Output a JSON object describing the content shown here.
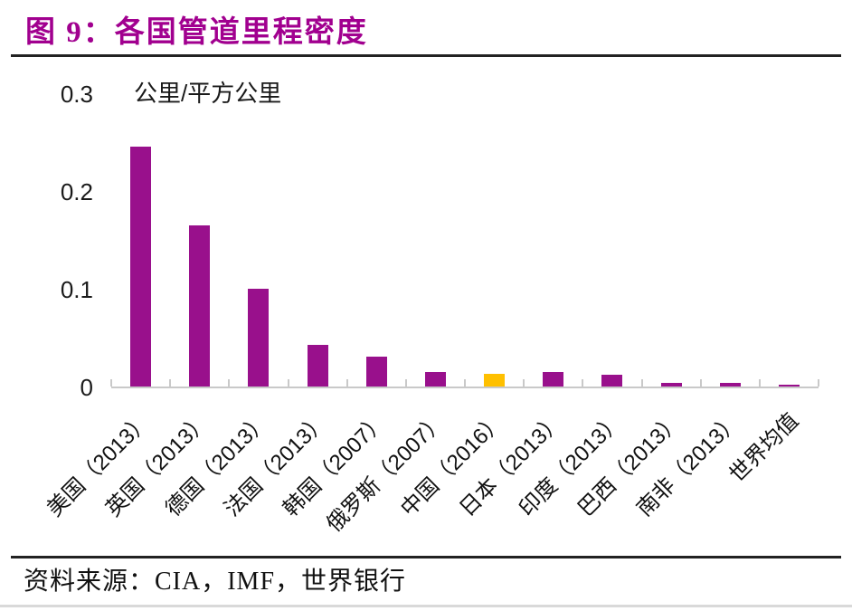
{
  "title": "图 9：各国管道里程密度",
  "unit_label": "公里/平方公里",
  "source_label": "资料来源：CIA，IMF，世界银行",
  "colors": {
    "title": "#a1008f",
    "bar": "#99108c",
    "highlight_bar": "#ffc000",
    "axis": "#c9c9c9",
    "rule": "#222222",
    "page_bottom_border": "#d9d9d9"
  },
  "chart_data": {
    "type": "bar",
    "title": "图 9：各国管道里程密度",
    "ylabel": "公里/平方公里",
    "xlabel": "",
    "categories": [
      "美国（2013）",
      "英国（2013）",
      "德国（2013）",
      "法国（2013）",
      "韩国（2007）",
      "俄罗斯（2007）",
      "中国（2016）",
      "日本（2013）",
      "印度（2013）",
      "巴西（2013）",
      "南非（2013）",
      "世界均值"
    ],
    "values": [
      0.245,
      0.165,
      0.1,
      0.043,
      0.031,
      0.015,
      0.013,
      0.015,
      0.012,
      0.004,
      0.004,
      0.002
    ],
    "highlight_index": 6,
    "highlight_category": "中国（2016）",
    "ylim": [
      0,
      0.3
    ],
    "yticks": [
      0,
      0.1,
      0.2,
      0.3
    ],
    "grid": false,
    "legend_position": "none",
    "x_label_rotation_deg": 45,
    "source": "资料来源：CIA，IMF，世界银行"
  }
}
